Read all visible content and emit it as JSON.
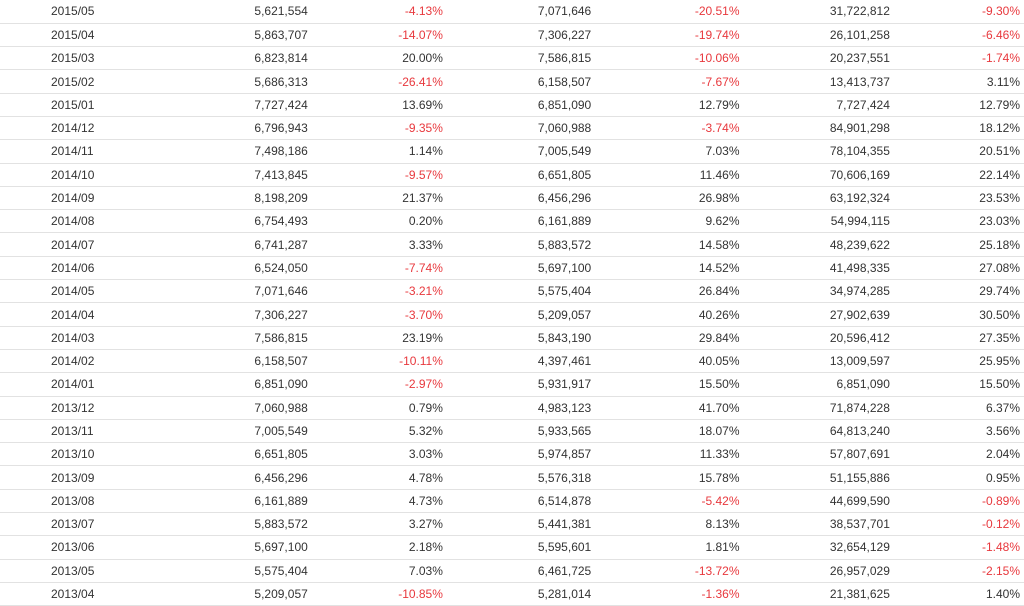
{
  "colors": {
    "negative": "#e8383d",
    "text": "#333333",
    "row_border": "#e2e2e2"
  },
  "table": {
    "rows": [
      [
        "2015/05",
        "5,621,554",
        "-4.13%",
        "7,071,646",
        "-20.51%",
        "31,722,812",
        "-9.30%"
      ],
      [
        "2015/04",
        "5,863,707",
        "-14.07%",
        "7,306,227",
        "-19.74%",
        "26,101,258",
        "-6.46%"
      ],
      [
        "2015/03",
        "6,823,814",
        "20.00%",
        "7,586,815",
        "-10.06%",
        "20,237,551",
        "-1.74%"
      ],
      [
        "2015/02",
        "5,686,313",
        "-26.41%",
        "6,158,507",
        "-7.67%",
        "13,413,737",
        "3.11%"
      ],
      [
        "2015/01",
        "7,727,424",
        "13.69%",
        "6,851,090",
        "12.79%",
        "7,727,424",
        "12.79%"
      ],
      [
        "2014/12",
        "6,796,943",
        "-9.35%",
        "7,060,988",
        "-3.74%",
        "84,901,298",
        "18.12%"
      ],
      [
        "2014/11",
        "7,498,186",
        "1.14%",
        "7,005,549",
        "7.03%",
        "78,104,355",
        "20.51%"
      ],
      [
        "2014/10",
        "7,413,845",
        "-9.57%",
        "6,651,805",
        "11.46%",
        "70,606,169",
        "22.14%"
      ],
      [
        "2014/09",
        "8,198,209",
        "21.37%",
        "6,456,296",
        "26.98%",
        "63,192,324",
        "23.53%"
      ],
      [
        "2014/08",
        "6,754,493",
        "0.20%",
        "6,161,889",
        "9.62%",
        "54,994,115",
        "23.03%"
      ],
      [
        "2014/07",
        "6,741,287",
        "3.33%",
        "5,883,572",
        "14.58%",
        "48,239,622",
        "25.18%"
      ],
      [
        "2014/06",
        "6,524,050",
        "-7.74%",
        "5,697,100",
        "14.52%",
        "41,498,335",
        "27.08%"
      ],
      [
        "2014/05",
        "7,071,646",
        "-3.21%",
        "5,575,404",
        "26.84%",
        "34,974,285",
        "29.74%"
      ],
      [
        "2014/04",
        "7,306,227",
        "-3.70%",
        "5,209,057",
        "40.26%",
        "27,902,639",
        "30.50%"
      ],
      [
        "2014/03",
        "7,586,815",
        "23.19%",
        "5,843,190",
        "29.84%",
        "20,596,412",
        "27.35%"
      ],
      [
        "2014/02",
        "6,158,507",
        "-10.11%",
        "4,397,461",
        "40.05%",
        "13,009,597",
        "25.95%"
      ],
      [
        "2014/01",
        "6,851,090",
        "-2.97%",
        "5,931,917",
        "15.50%",
        "6,851,090",
        "15.50%"
      ],
      [
        "2013/12",
        "7,060,988",
        "0.79%",
        "4,983,123",
        "41.70%",
        "71,874,228",
        "6.37%"
      ],
      [
        "2013/11",
        "7,005,549",
        "5.32%",
        "5,933,565",
        "18.07%",
        "64,813,240",
        "3.56%"
      ],
      [
        "2013/10",
        "6,651,805",
        "3.03%",
        "5,974,857",
        "11.33%",
        "57,807,691",
        "2.04%"
      ],
      [
        "2013/09",
        "6,456,296",
        "4.78%",
        "5,576,318",
        "15.78%",
        "51,155,886",
        "0.95%"
      ],
      [
        "2013/08",
        "6,161,889",
        "4.73%",
        "6,514,878",
        "-5.42%",
        "44,699,590",
        "-0.89%"
      ],
      [
        "2013/07",
        "5,883,572",
        "3.27%",
        "5,441,381",
        "8.13%",
        "38,537,701",
        "-0.12%"
      ],
      [
        "2013/06",
        "5,697,100",
        "2.18%",
        "5,595,601",
        "1.81%",
        "32,654,129",
        "-1.48%"
      ],
      [
        "2013/05",
        "5,575,404",
        "7.03%",
        "6,461,725",
        "-13.72%",
        "26,957,029",
        "-2.15%"
      ],
      [
        "2013/04",
        "5,209,057",
        "-10.85%",
        "5,281,014",
        "-1.36%",
        "21,381,625",
        "1.40%"
      ]
    ]
  }
}
